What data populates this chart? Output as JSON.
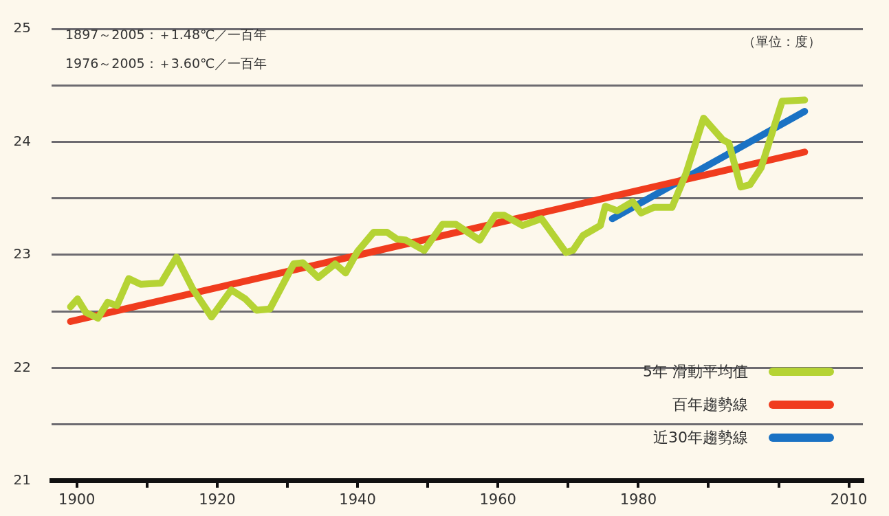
{
  "chart_data": {
    "type": "line",
    "annotations": [
      "1897～2005：＋1.48℃／一百年",
      "1976～2005：＋3.60℃／一百年",
      "（單位：度）"
    ],
    "xlim": [
      1896.4,
      2012
    ],
    "xticks": [
      1900,
      {
        "value": 1910,
        "label": null
      },
      1920,
      {
        "value": 1930,
        "label": null
      },
      1940,
      {
        "value": 1950,
        "label": null
      },
      1960,
      {
        "value": 1970,
        "label": null
      },
      1980,
      {
        "value": 1990,
        "label": null
      },
      {
        "value": 2000,
        "label": null
      },
      2010
    ],
    "ylim": [
      21,
      25
    ],
    "yticks": [
      21,
      {
        "value": 21.5,
        "label": null
      },
      22,
      {
        "value": 22.5,
        "label": null
      },
      23,
      {
        "value": 23.5,
        "label": null
      },
      24,
      {
        "value": 24.5,
        "label": null
      },
      25
    ],
    "grid": "y",
    "legend": "bottom right",
    "marker": "none",
    "line_style": "solid",
    "series": [
      {
        "name": "5年 滑動平均值",
        "color": "#b5d334",
        "x": [
          1899.1,
          1900.1,
          1901.3,
          1903,
          1904.4,
          1905.7,
          1907.4,
          1909.1,
          1912,
          1914.2,
          1916.5,
          1919.2,
          1922,
          1924,
          1925.6,
          1927.5,
          1930.9,
          1932.2,
          1934.4,
          1936.8,
          1938.3,
          1940,
          1942.3,
          1944.2,
          1945.6,
          1946.9,
          1949.5,
          1952.1,
          1954,
          1957.4,
          1959.6,
          1960.9,
          1963.5,
          1966.2,
          1969.7,
          1970.7,
          1972.1,
          1974.6,
          1975.3,
          1977,
          1979.2,
          1980.4,
          1982.2,
          1984.8,
          1986.8,
          1989.3,
          1992,
          1992.9,
          1994.6,
          1995.9,
          1997.5,
          2000.5,
          2003.7
        ],
        "values": [
          22.54,
          22.61,
          22.49,
          22.44,
          22.58,
          22.55,
          22.79,
          22.74,
          22.75,
          22.98,
          22.7,
          22.45,
          22.69,
          22.61,
          22.51,
          22.52,
          22.92,
          22.93,
          22.8,
          22.92,
          22.84,
          23.03,
          23.2,
          23.2,
          23.14,
          23.13,
          23.04,
          23.27,
          23.27,
          23.13,
          23.35,
          23.35,
          23.26,
          23.32,
          23.02,
          23.04,
          23.17,
          23.26,
          23.43,
          23.39,
          23.47,
          23.37,
          23.42,
          23.42,
          23.72,
          24.21,
          24.02,
          23.99,
          23.6,
          23.62,
          23.77,
          24.36,
          24.37
        ]
      },
      {
        "name": "百年趨勢線",
        "color": "#f03c1e",
        "x": [
          1899.1,
          2003.7
        ],
        "values": [
          22.41,
          23.91
        ]
      },
      {
        "name": "近30年趨勢線",
        "color": "#1a72c4",
        "x": [
          1976.3,
          2003.7
        ],
        "values": [
          23.32,
          24.27
        ]
      }
    ]
  }
}
